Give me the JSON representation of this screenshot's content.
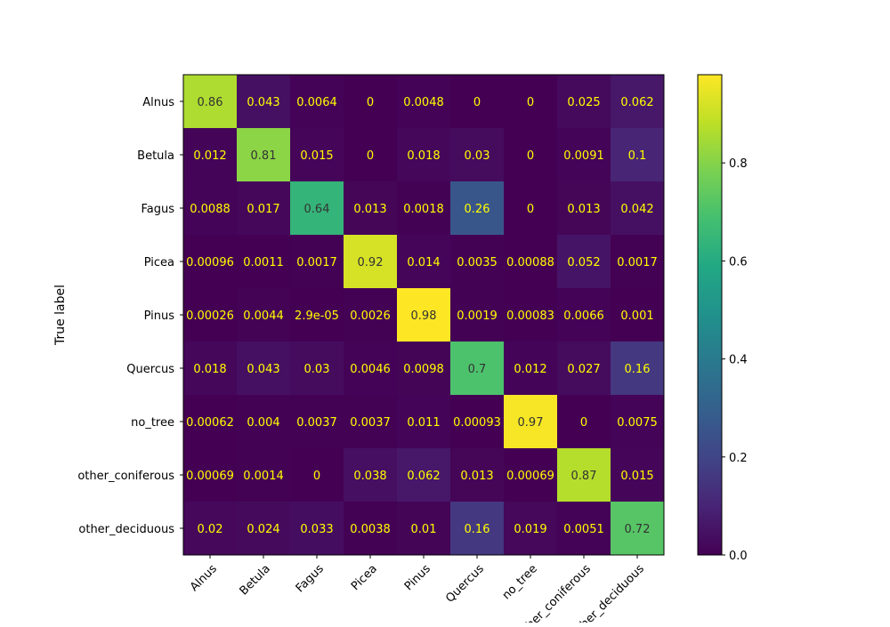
{
  "chart_data": {
    "type": "heatmap",
    "title": "",
    "xlabel": "",
    "ylabel": "True label",
    "labels": [
      "Alnus",
      "Betula",
      "Fagus",
      "Picea",
      "Pinus",
      "Quercus",
      "no_tree",
      "other_coniferous",
      "other_deciduous"
    ],
    "matrix": [
      [
        "0.86",
        "0.043",
        "0.0064",
        "0",
        "0.0048",
        "0",
        "0",
        "0.025",
        "0.062"
      ],
      [
        "0.012",
        "0.81",
        "0.015",
        "0",
        "0.018",
        "0.03",
        "0",
        "0.0091",
        "0.1"
      ],
      [
        "0.0088",
        "0.017",
        "0.64",
        "0.013",
        "0.0018",
        "0.26",
        "0",
        "0.013",
        "0.042"
      ],
      [
        "0.00096",
        "0.0011",
        "0.0017",
        "0.92",
        "0.014",
        "0.0035",
        "0.00088",
        "0.052",
        "0.0017"
      ],
      [
        "0.00026",
        "0.0044",
        "2.9e-05",
        "0.0026",
        "0.98",
        "0.0019",
        "0.00083",
        "0.0066",
        "0.001"
      ],
      [
        "0.018",
        "0.043",
        "0.03",
        "0.0046",
        "0.0098",
        "0.7",
        "0.012",
        "0.027",
        "0.16"
      ],
      [
        "0.00062",
        "0.004",
        "0.0037",
        "0.0037",
        "0.011",
        "0.00093",
        "0.97",
        "0",
        "0.0075"
      ],
      [
        "0.00069",
        "0.0014",
        "0",
        "0.038",
        "0.062",
        "0.013",
        "0.00069",
        "0.87",
        "0.015"
      ],
      [
        "0.02",
        "0.024",
        "0.033",
        "0.0038",
        "0.01",
        "0.16",
        "0.019",
        "0.0051",
        "0.72"
      ]
    ],
    "colorbar": {
      "colormap": "viridis",
      "vmin": 0.0,
      "vmax": 0.98,
      "ticks": [
        0.0,
        0.2,
        0.4,
        0.6,
        0.8
      ],
      "tick_labels": [
        "0.0",
        "0.2",
        "0.4",
        "0.6",
        "0.8"
      ]
    },
    "text_color_low": "#ffff00",
    "text_color_high": "#333333"
  }
}
